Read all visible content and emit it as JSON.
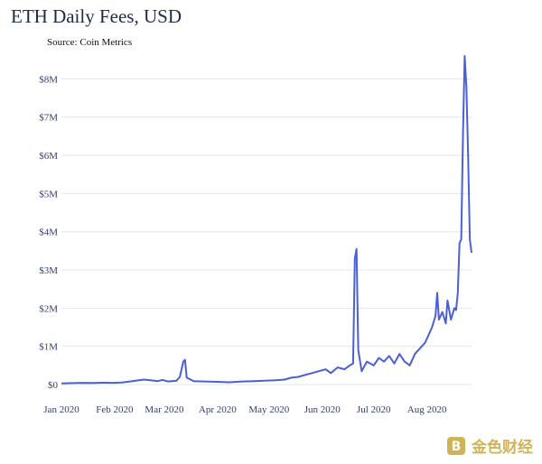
{
  "chart_data": {
    "type": "line",
    "title": "ETH Daily Fees, USD",
    "subtitle": "Source: Coin Metrics",
    "series_color": "#4b5fd6",
    "grid": "horizontal",
    "ylim": [
      0,
      8600000
    ],
    "y_ticks": [
      {
        "value": 0,
        "label": "$0"
      },
      {
        "value": 1000000,
        "label": "$1M"
      },
      {
        "value": 2000000,
        "label": "$2M"
      },
      {
        "value": 3000000,
        "label": "$3M"
      },
      {
        "value": 4000000,
        "label": "$4M"
      },
      {
        "value": 5000000,
        "label": "$5M"
      },
      {
        "value": 6000000,
        "label": "$6M"
      },
      {
        "value": 7000000,
        "label": "$7M"
      },
      {
        "value": 8000000,
        "label": "$8M"
      }
    ],
    "x_ticks": [
      {
        "value": "2020-01-01",
        "label": "Jan 2020"
      },
      {
        "value": "2020-02-01",
        "label": "Feb 2020"
      },
      {
        "value": "2020-03-01",
        "label": "Mar 2020"
      },
      {
        "value": "2020-04-01",
        "label": "Apr 2020"
      },
      {
        "value": "2020-05-01",
        "label": "May 2020"
      },
      {
        "value": "2020-06-01",
        "label": "Jun 2020"
      },
      {
        "value": "2020-07-01",
        "label": "Jul 2020"
      },
      {
        "value": "2020-08-01",
        "label": "Aug 2020"
      }
    ],
    "points": [
      [
        "2020-01-01",
        30000
      ],
      [
        "2020-01-05",
        35000
      ],
      [
        "2020-01-10",
        40000
      ],
      [
        "2020-01-15",
        45000
      ],
      [
        "2020-01-20",
        40000
      ],
      [
        "2020-01-25",
        50000
      ],
      [
        "2020-01-31",
        45000
      ],
      [
        "2020-02-05",
        55000
      ],
      [
        "2020-02-10",
        80000
      ],
      [
        "2020-02-15",
        110000
      ],
      [
        "2020-02-18",
        130000
      ],
      [
        "2020-02-22",
        110000
      ],
      [
        "2020-02-26",
        90000
      ],
      [
        "2020-02-29",
        120000
      ],
      [
        "2020-03-03",
        80000
      ],
      [
        "2020-03-08",
        100000
      ],
      [
        "2020-03-10",
        200000
      ],
      [
        "2020-03-12",
        600000
      ],
      [
        "2020-03-13",
        650000
      ],
      [
        "2020-03-14",
        180000
      ],
      [
        "2020-03-18",
        90000
      ],
      [
        "2020-03-25",
        80000
      ],
      [
        "2020-04-01",
        70000
      ],
      [
        "2020-04-08",
        60000
      ],
      [
        "2020-04-15",
        80000
      ],
      [
        "2020-04-22",
        90000
      ],
      [
        "2020-04-28",
        100000
      ],
      [
        "2020-05-05",
        110000
      ],
      [
        "2020-05-10",
        130000
      ],
      [
        "2020-05-14",
        180000
      ],
      [
        "2020-05-18",
        200000
      ],
      [
        "2020-05-22",
        250000
      ],
      [
        "2020-05-26",
        300000
      ],
      [
        "2020-05-30",
        350000
      ],
      [
        "2020-06-03",
        400000
      ],
      [
        "2020-06-06",
        300000
      ],
      [
        "2020-06-10",
        450000
      ],
      [
        "2020-06-14",
        400000
      ],
      [
        "2020-06-17",
        500000
      ],
      [
        "2020-06-19",
        550000
      ],
      [
        "2020-06-20",
        3300000
      ],
      [
        "2020-06-21",
        3550000
      ],
      [
        "2020-06-22",
        900000
      ],
      [
        "2020-06-24",
        350000
      ],
      [
        "2020-06-27",
        600000
      ],
      [
        "2020-07-01",
        500000
      ],
      [
        "2020-07-04",
        700000
      ],
      [
        "2020-07-07",
        600000
      ],
      [
        "2020-07-10",
        750000
      ],
      [
        "2020-07-13",
        550000
      ],
      [
        "2020-07-16",
        800000
      ],
      [
        "2020-07-19",
        600000
      ],
      [
        "2020-07-22",
        500000
      ],
      [
        "2020-07-25",
        800000
      ],
      [
        "2020-07-28",
        950000
      ],
      [
        "2020-07-31",
        1100000
      ],
      [
        "2020-08-02",
        1300000
      ],
      [
        "2020-08-04",
        1500000
      ],
      [
        "2020-08-06",
        1800000
      ],
      [
        "2020-08-07",
        2400000
      ],
      [
        "2020-08-08",
        1700000
      ],
      [
        "2020-08-10",
        1900000
      ],
      [
        "2020-08-12",
        1600000
      ],
      [
        "2020-08-13",
        2200000
      ],
      [
        "2020-08-15",
        1700000
      ],
      [
        "2020-08-17",
        2000000
      ],
      [
        "2020-08-18",
        1950000
      ],
      [
        "2020-08-19",
        2400000
      ],
      [
        "2020-08-20",
        3700000
      ],
      [
        "2020-08-21",
        3800000
      ],
      [
        "2020-08-22",
        6500000
      ],
      [
        "2020-08-23",
        8600000
      ],
      [
        "2020-08-24",
        7800000
      ],
      [
        "2020-08-25",
        6000000
      ],
      [
        "2020-08-26",
        3800000
      ],
      [
        "2020-08-27",
        3450000
      ]
    ]
  },
  "watermark": {
    "text": "金色财经"
  }
}
